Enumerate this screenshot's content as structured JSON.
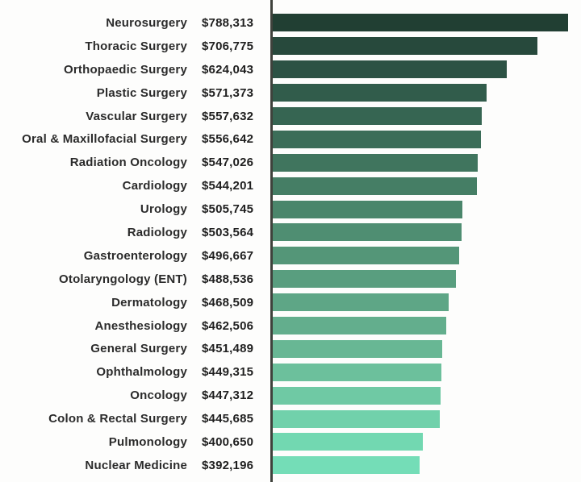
{
  "background_color": "#fdfdfc",
  "axis": {
    "color": "#3f423c"
  },
  "text": {
    "label_color": "#2b2b2b",
    "value_color": "#1f1f1f"
  },
  "chart_data": {
    "type": "bar",
    "orientation": "horizontal",
    "sort": "descending",
    "grid": false,
    "legend": false,
    "xlim": [
      0,
      788313
    ],
    "categories": [
      "Neurosurgery",
      "Thoracic Surgery",
      "Orthopaedic Surgery",
      "Plastic Surgery",
      "Vascular Surgery",
      "Oral & Maxillofacial Surgery",
      "Radiation Oncology",
      "Cardiology",
      "Urology",
      "Radiology",
      "Gastroenterology",
      "Otolaryngology (ENT)",
      "Dermatology",
      "Anesthesiology",
      "General Surgery",
      "Ophthalmology",
      "Oncology",
      "Colon & Rectal Surgery",
      "Pulmonology",
      "Nuclear Medicine"
    ],
    "values": [
      788313,
      706775,
      624043,
      571373,
      557632,
      556642,
      547026,
      544201,
      505745,
      503564,
      496667,
      488536,
      468509,
      462506,
      451489,
      449315,
      447312,
      445685,
      400650,
      392196
    ],
    "value_labels": [
      "$788,313",
      "$706,775",
      "$624,043",
      "$571,373",
      "$557,632",
      "$556,642",
      "$547,026",
      "$544,201",
      "$505,745",
      "$503,564",
      "$496,667",
      "$488,536",
      "$468,509",
      "$462,506",
      "$451,489",
      "$449,315",
      "$447,312",
      "$445,685",
      "$400,650",
      "$392,196"
    ],
    "bar_colors": [
      "#213f33",
      "#27493c",
      "#2c5244",
      "#315c4b",
      "#366552",
      "#3b6d58",
      "#40755e",
      "#457e65",
      "#4a866b",
      "#4f8e72",
      "#549678",
      "#599e7f",
      "#5ea686",
      "#63ae8d",
      "#68b794",
      "#6cc09c",
      "#6fc9a4",
      "#71d1ab",
      "#72d8b1",
      "#74ddb7"
    ]
  }
}
